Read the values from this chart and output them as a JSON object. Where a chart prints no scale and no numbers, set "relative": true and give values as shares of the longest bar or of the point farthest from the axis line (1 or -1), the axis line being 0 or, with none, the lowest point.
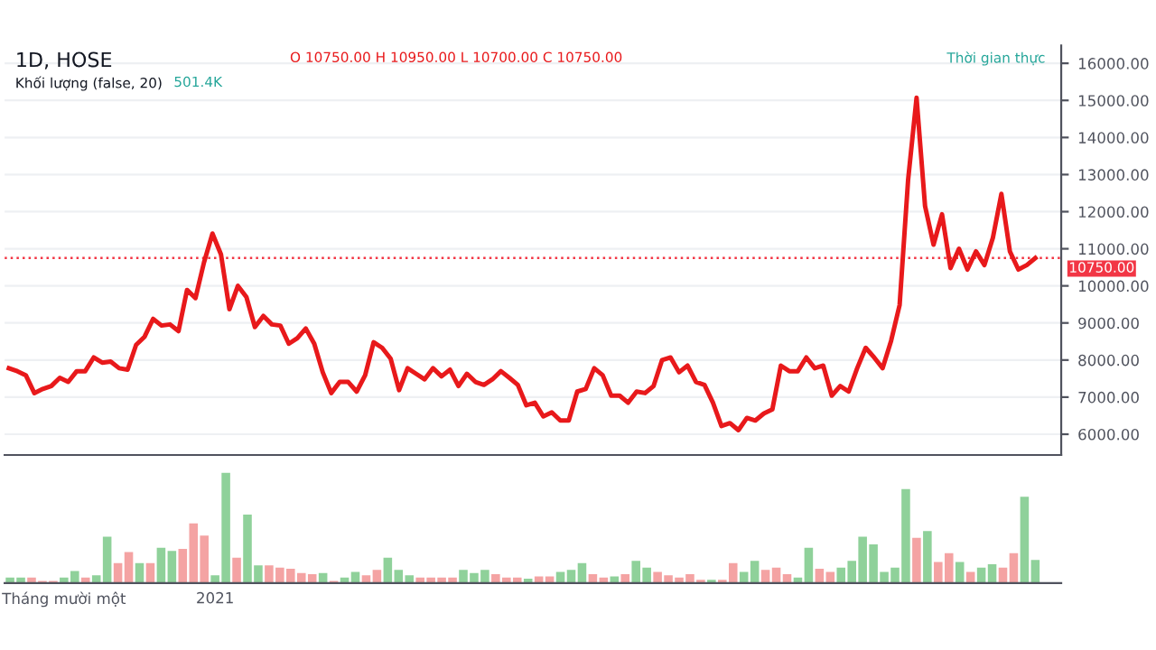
{
  "chart_data": [
    {
      "type": "line",
      "title": "1D, HOSE",
      "subtitle": "Khối lượng (false, 20)",
      "annotations": [
        "O 10750.00 H 10950.00 L 10700.00 C 10750.00",
        "501.4K",
        "Thời gian thực"
      ],
      "tick_labels": "y",
      "categories": [
        null,
        null,
        null,
        null,
        null,
        null,
        null,
        null,
        null,
        null,
        null,
        null,
        null,
        null,
        null,
        null,
        null,
        null,
        null,
        null,
        null,
        null,
        null,
        null,
        null,
        null,
        null,
        null,
        null,
        null,
        null,
        null,
        null,
        null,
        null,
        null,
        null,
        null,
        null,
        null,
        null,
        null,
        null,
        null,
        null,
        null,
        null,
        null,
        null,
        null,
        null,
        null,
        null,
        null,
        null,
        null,
        null,
        null,
        null,
        null,
        null,
        null,
        null,
        null,
        null,
        null,
        null,
        null,
        null,
        null,
        null,
        null,
        null,
        null,
        null,
        null,
        null,
        null,
        null,
        null,
        null,
        null,
        null,
        null,
        null,
        null,
        null,
        null,
        null,
        null,
        null,
        null,
        null,
        null,
        null,
        null,
        null,
        null,
        null,
        null,
        null,
        null,
        null,
        null,
        null,
        null,
        null,
        null,
        null,
        null,
        null,
        null,
        null,
        null,
        null,
        null,
        null,
        null,
        null,
        null,
        null,
        null
      ],
      "series": [
        {
          "color": "#e8191b",
          "values": [
            7780,
            7700,
            7590,
            7110,
            7220,
            7300,
            7520,
            7410,
            7700,
            7700,
            8070,
            7930,
            7960,
            7780,
            7740,
            8410,
            8630,
            9110,
            8930,
            8960,
            8780,
            9890,
            9670,
            10630,
            11410,
            10850,
            9370,
            10000,
            9700,
            8890,
            9190,
            8960,
            8930,
            8440,
            8590,
            8850,
            8440,
            7670,
            7110,
            7410,
            7410,
            7150,
            7590,
            8480,
            8330,
            8040,
            7190,
            7780,
            7630,
            7480,
            7780,
            7560,
            7740,
            7300,
            7630,
            7410,
            7330,
            7480,
            7700,
            7520,
            7330,
            6780,
            6850,
            6480,
            6590,
            6370,
            6370,
            7150,
            7220,
            7780,
            7590,
            7040,
            7040,
            6850,
            7150,
            7110,
            7300,
            8000,
            8070,
            7670,
            7850,
            7410,
            7330,
            6850,
            6220,
            6300,
            6110,
            6440,
            6370,
            6560,
            6670,
            7850,
            7700,
            7700,
            8070,
            7780,
            7850,
            7040,
            7300,
            7150,
            7780,
            8330,
            8070,
            7780,
            8520,
            9480,
            12850,
            15070,
            12150,
            11110,
            11930,
            10480,
            11000,
            10440,
            10930,
            10560,
            11300,
            12480,
            10930,
            10440,
            10560,
            10750
          ]
        }
      ],
      "ylim": [
        5440,
        16480
      ],
      "yticks": [
        {
          "value": 6000,
          "label": "6000.00"
        },
        {
          "value": 7000,
          "label": "7000.00"
        },
        {
          "value": 8000,
          "label": "8000.00"
        },
        {
          "value": 9000,
          "label": "9000.00"
        },
        {
          "value": 10000,
          "label": "10000.00"
        },
        {
          "value": 11000,
          "label": "11000.00"
        },
        {
          "value": 12000,
          "label": "12000.00"
        },
        {
          "value": 13000,
          "label": "13000.00"
        },
        {
          "value": 14000,
          "label": "14000.00"
        },
        {
          "value": 15000,
          "label": "15000.00"
        },
        {
          "value": 16000,
          "label": "16000.00"
        }
      ],
      "ref_lines": [
        {
          "axis": "y",
          "value": 10750,
          "label": "10750.00",
          "color": "#f23645",
          "line_style": "dotted"
        }
      ],
      "grid": true,
      "line_style": "solid"
    },
    {
      "type": "bar",
      "relative": true,
      "categories": [
        null,
        null,
        null,
        null,
        null,
        "Tháng mười một",
        null,
        null,
        null,
        null,
        null,
        null,
        null,
        null,
        null,
        null,
        null,
        null,
        null,
        "2021",
        null,
        null,
        null,
        null,
        null,
        null,
        null,
        null,
        null,
        null,
        null,
        null,
        null,
        null,
        null,
        null,
        null,
        null,
        null,
        null,
        null,
        null,
        null,
        null,
        null,
        null,
        null,
        null,
        null,
        null,
        null,
        null,
        null,
        null,
        null,
        null,
        null,
        null,
        null,
        null,
        null,
        null,
        null,
        null,
        null,
        null,
        null,
        null,
        null,
        null,
        null,
        null,
        null,
        null,
        null,
        null,
        null,
        null,
        null,
        null,
        null,
        null,
        null,
        null,
        null,
        null,
        null,
        null,
        null,
        null,
        null,
        null,
        null,
        null,
        null,
        null
      ],
      "values": [
        0.05,
        0.05,
        0.05,
        0.02,
        0.02,
        0.05,
        0.11,
        0.05,
        0.07,
        0.42,
        0.18,
        0.28,
        0.18,
        0.18,
        0.32,
        0.29,
        0.31,
        0.54,
        0.43,
        0.07,
        1,
        0.23,
        0.62,
        0.16,
        0.16,
        0.14,
        0.13,
        0.09,
        0.08,
        0.09,
        0.02,
        0.05,
        0.1,
        0.07,
        0.12,
        0.23,
        0.12,
        0.07,
        0.05,
        0.05,
        0.05,
        0.05,
        0.12,
        0.09,
        0.12,
        0.08,
        0.05,
        0.05,
        0.04,
        0.06,
        0.06,
        0.1,
        0.12,
        0.18,
        0.08,
        0.05,
        0.06,
        0.08,
        0.2,
        0.14,
        0.1,
        0.07,
        0.05,
        0.08,
        0.03,
        0.03,
        0.03,
        0.18,
        0.1,
        0.2,
        0.12,
        0.14,
        0.08,
        0.05,
        0.32,
        0.13,
        0.1,
        0.14,
        0.2,
        0.42,
        0.35,
        0.1,
        0.14,
        0.85,
        0.41,
        0.47,
        0.19,
        0.27,
        0.19,
        0.1,
        0.14,
        0.17,
        0.14,
        0.27,
        0.78,
        0.21
      ],
      "colors": [
        "#8fd19a",
        "#8fd19a",
        "#f4a3a3",
        "#f4a3a3",
        "#f4a3a3",
        "#8fd19a",
        "#8fd19a",
        "#f4a3a3",
        "#8fd19a",
        "#8fd19a",
        "#f4a3a3",
        "#f4a3a3",
        "#8fd19a",
        "#f4a3a3",
        "#8fd19a",
        "#8fd19a",
        "#f4a3a3",
        "#f4a3a3",
        "#f4a3a3",
        "#8fd19a",
        "#8fd19a",
        "#f4a3a3",
        "#8fd19a",
        "#8fd19a",
        "#f4a3a3",
        "#f4a3a3",
        "#f4a3a3",
        "#f4a3a3",
        "#f4a3a3",
        "#8fd19a",
        "#f4a3a3",
        "#8fd19a",
        "#8fd19a",
        "#f4a3a3",
        "#f4a3a3",
        "#8fd19a",
        "#8fd19a",
        "#8fd19a",
        "#f4a3a3",
        "#f4a3a3",
        "#f4a3a3",
        "#f4a3a3",
        "#8fd19a",
        "#8fd19a",
        "#8fd19a",
        "#f4a3a3",
        "#f4a3a3",
        "#f4a3a3",
        "#8fd19a",
        "#f4a3a3",
        "#f4a3a3",
        "#8fd19a",
        "#8fd19a",
        "#8fd19a",
        "#f4a3a3",
        "#f4a3a3",
        "#8fd19a",
        "#f4a3a3",
        "#8fd19a",
        "#8fd19a",
        "#f4a3a3",
        "#f4a3a3",
        "#f4a3a3",
        "#f4a3a3",
        "#f4a3a3",
        "#8fd19a",
        "#f4a3a3",
        "#f4a3a3",
        "#8fd19a",
        "#8fd19a",
        "#f4a3a3",
        "#f4a3a3",
        "#f4a3a3",
        "#8fd19a",
        "#8fd19a",
        "#f4a3a3",
        "#f4a3a3",
        "#8fd19a",
        "#8fd19a",
        "#8fd19a",
        "#8fd19a",
        "#8fd19a",
        "#8fd19a",
        "#8fd19a",
        "#f4a3a3",
        "#8fd19a",
        "#f4a3a3",
        "#f4a3a3",
        "#8fd19a",
        "#f4a3a3",
        "#8fd19a",
        "#8fd19a",
        "#f4a3a3",
        "#f4a3a3",
        "#8fd19a",
        "#8fd19a"
      ]
    }
  ]
}
